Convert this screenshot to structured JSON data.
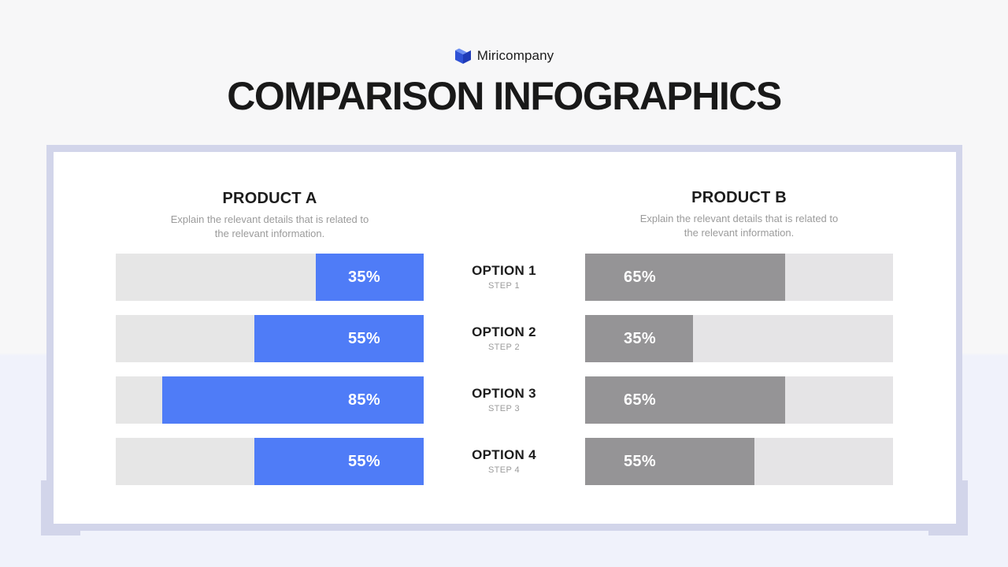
{
  "brand": {
    "name": "Miricompany",
    "logo_icon": "cube-logo-icon"
  },
  "title": "COMPARISON INFOGRAPHICS",
  "colors": {
    "accent": "#4f7cf7",
    "neutral": "#959496",
    "track": "#e6e6e6",
    "frame": "#d2d5ea"
  },
  "product_a": {
    "title": "PRODUCT A",
    "description": "Explain the relevant details that is related to the relevant information."
  },
  "product_b": {
    "title": "PRODUCT B",
    "description": "Explain the relevant details that is related to the relevant information."
  },
  "chart_data": {
    "type": "bar",
    "categories": [
      "OPTION 1",
      "OPTION 2",
      "OPTION 3",
      "OPTION 4"
    ],
    "steps": [
      "STEP 1",
      "STEP 2",
      "STEP 3",
      "STEP 4"
    ],
    "series": [
      {
        "name": "PRODUCT A",
        "values": [
          35,
          55,
          85,
          55
        ],
        "labels": [
          "35%",
          "55%",
          "85%",
          "55%"
        ]
      },
      {
        "name": "PRODUCT B",
        "values": [
          65,
          35,
          65,
          55
        ],
        "labels": [
          "65%",
          "35%",
          "65%",
          "55%"
        ]
      }
    ],
    "ylim": [
      0,
      100
    ],
    "title": "COMPARISON INFOGRAPHICS"
  }
}
